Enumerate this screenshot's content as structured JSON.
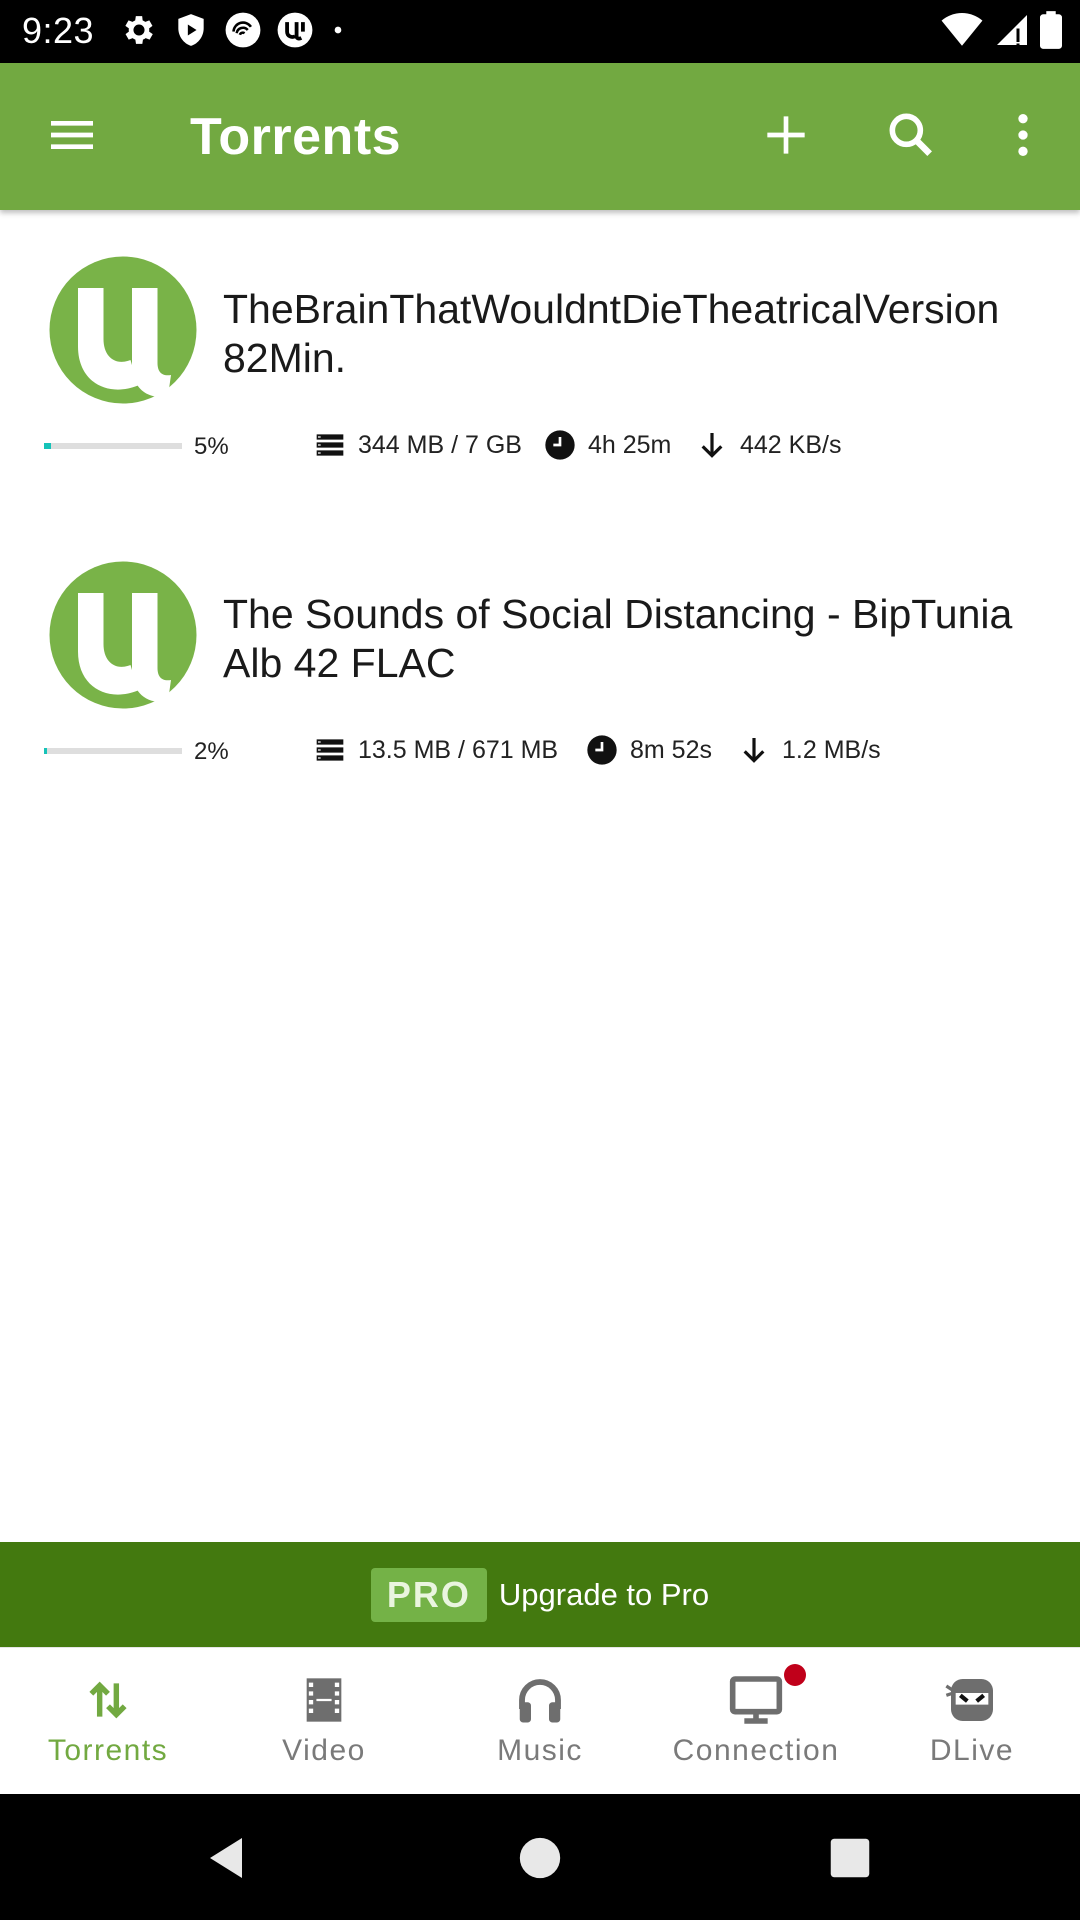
{
  "status_bar": {
    "time": "9:23"
  },
  "app_bar": {
    "title": "Torrents"
  },
  "torrents": [
    {
      "name": "TheBrainThatWouldntDieTheatricalVersion 82Min.",
      "progress_percent": 5,
      "progress_label": "5%",
      "size": "344 MB / 7 GB",
      "eta": "4h 25m",
      "speed": "442 KB/s"
    },
    {
      "name": "The Sounds of Social Distancing - BipTunia Alb 42 FLAC",
      "progress_percent": 2,
      "progress_label": "2%",
      "size": "13.5 MB / 671 MB",
      "eta": "8m 52s",
      "speed": "1.2 MB/s"
    }
  ],
  "upgrade": {
    "badge": "PRO",
    "label": "Upgrade to Pro"
  },
  "bottom_nav": {
    "items": [
      {
        "label": "Torrents",
        "icon": "transfer-arrows-icon",
        "active": true
      },
      {
        "label": "Video",
        "icon": "film-icon",
        "active": false
      },
      {
        "label": "Music",
        "icon": "headphones-icon",
        "active": false
      },
      {
        "label": "Connection",
        "icon": "monitor-icon",
        "active": false,
        "notification": true
      },
      {
        "label": "DLive",
        "icon": "ninja-mask-icon",
        "active": false
      }
    ]
  },
  "colors": {
    "app_bar": "#72a941",
    "upgrade_banner": "#43790f",
    "pro_badge": "#74b247",
    "progress": "#16c3b8",
    "active_nav": "#72a941",
    "notification_dot": "#c0001a"
  }
}
